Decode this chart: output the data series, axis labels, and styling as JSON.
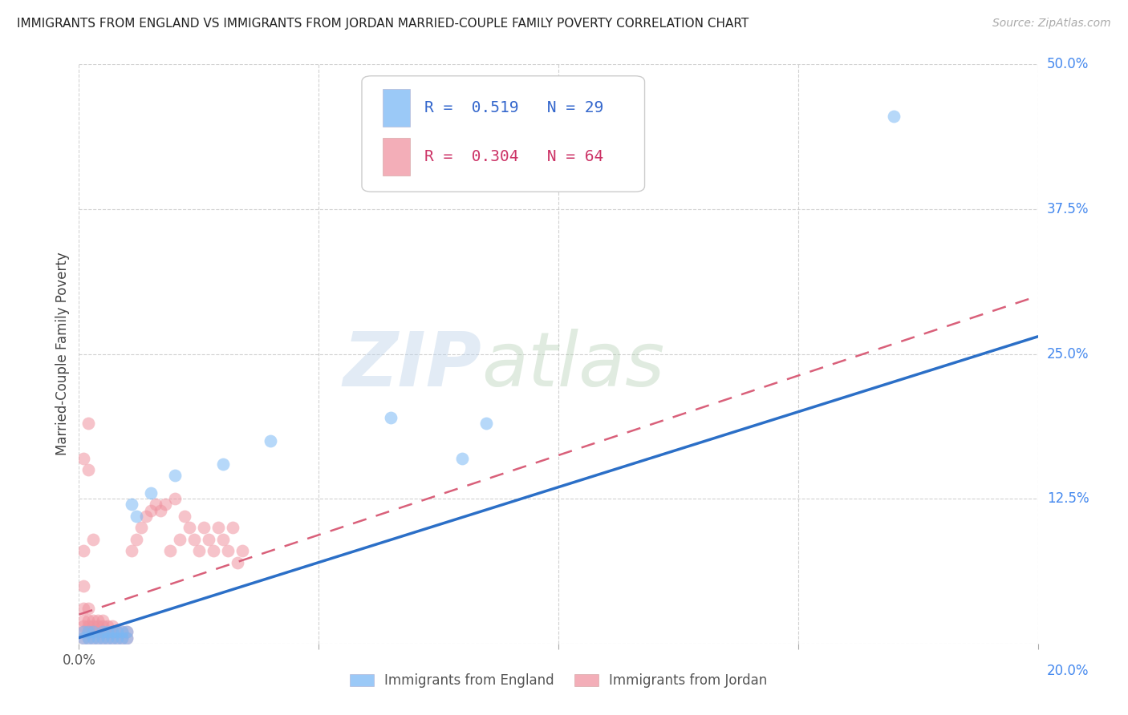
{
  "title": "IMMIGRANTS FROM ENGLAND VS IMMIGRANTS FROM JORDAN MARRIED-COUPLE FAMILY POVERTY CORRELATION CHART",
  "source": "Source: ZipAtlas.com",
  "ylabel": "Married-Couple Family Poverty",
  "x_min": 0.0,
  "x_max": 0.2,
  "y_min": 0.0,
  "y_max": 0.5,
  "x_ticks": [
    0.0,
    0.05,
    0.1,
    0.15,
    0.2
  ],
  "y_ticks": [
    0.0,
    0.125,
    0.25,
    0.375,
    0.5
  ],
  "england_R": 0.519,
  "england_N": 29,
  "jordan_R": 0.304,
  "jordan_N": 64,
  "england_color": "#7ab8f5",
  "jordan_color": "#f093a0",
  "england_line_color": "#2b6fc7",
  "jordan_line_color": "#d9607a",
  "legend_entries": [
    "Immigrants from England",
    "Immigrants from Jordan"
  ],
  "england_x": [
    0.001,
    0.001,
    0.002,
    0.002,
    0.003,
    0.003,
    0.004,
    0.005,
    0.005,
    0.006,
    0.006,
    0.007,
    0.007,
    0.008,
    0.008,
    0.009,
    0.009,
    0.01,
    0.01,
    0.011,
    0.012,
    0.015,
    0.02,
    0.03,
    0.04,
    0.065,
    0.08,
    0.085,
    0.17
  ],
  "england_y": [
    0.005,
    0.01,
    0.005,
    0.01,
    0.005,
    0.01,
    0.005,
    0.005,
    0.01,
    0.005,
    0.01,
    0.005,
    0.01,
    0.005,
    0.01,
    0.005,
    0.01,
    0.005,
    0.01,
    0.12,
    0.11,
    0.13,
    0.145,
    0.155,
    0.175,
    0.195,
    0.16,
    0.19,
    0.455
  ],
  "jordan_x": [
    0.001,
    0.001,
    0.001,
    0.001,
    0.001,
    0.001,
    0.001,
    0.001,
    0.002,
    0.002,
    0.002,
    0.002,
    0.002,
    0.002,
    0.002,
    0.003,
    0.003,
    0.003,
    0.003,
    0.003,
    0.004,
    0.004,
    0.004,
    0.004,
    0.005,
    0.005,
    0.005,
    0.005,
    0.006,
    0.006,
    0.006,
    0.007,
    0.007,
    0.007,
    0.008,
    0.008,
    0.009,
    0.009,
    0.01,
    0.01,
    0.011,
    0.012,
    0.013,
    0.014,
    0.015,
    0.016,
    0.017,
    0.018,
    0.019,
    0.02,
    0.021,
    0.022,
    0.023,
    0.024,
    0.025,
    0.026,
    0.027,
    0.028,
    0.029,
    0.03,
    0.031,
    0.032,
    0.033,
    0.034
  ],
  "jordan_y": [
    0.005,
    0.01,
    0.015,
    0.02,
    0.03,
    0.05,
    0.08,
    0.16,
    0.005,
    0.01,
    0.015,
    0.02,
    0.03,
    0.15,
    0.19,
    0.005,
    0.01,
    0.015,
    0.02,
    0.09,
    0.005,
    0.01,
    0.015,
    0.02,
    0.005,
    0.01,
    0.015,
    0.02,
    0.005,
    0.01,
    0.015,
    0.005,
    0.01,
    0.015,
    0.005,
    0.01,
    0.005,
    0.01,
    0.005,
    0.01,
    0.08,
    0.09,
    0.1,
    0.11,
    0.115,
    0.12,
    0.115,
    0.12,
    0.08,
    0.125,
    0.09,
    0.11,
    0.1,
    0.09,
    0.08,
    0.1,
    0.09,
    0.08,
    0.1,
    0.09,
    0.08,
    0.1,
    0.07,
    0.08
  ],
  "eng_line_x0": 0.0,
  "eng_line_y0": 0.005,
  "eng_line_x1": 0.2,
  "eng_line_y1": 0.265,
  "jor_line_x0": 0.0,
  "jor_line_y0": 0.025,
  "jor_line_x1": 0.2,
  "jor_line_y1": 0.3
}
